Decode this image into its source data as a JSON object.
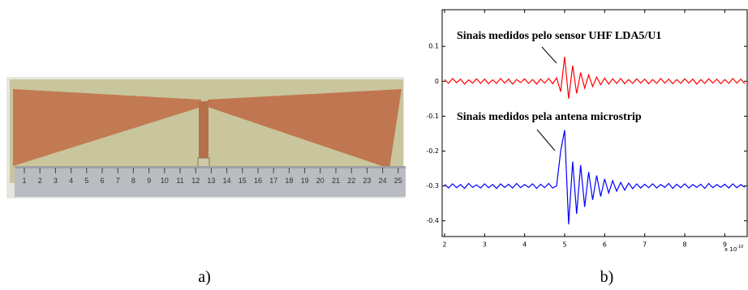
{
  "figure_a": {
    "label": "a)",
    "ruler_labels": [
      1,
      2,
      3,
      4,
      5,
      6,
      7,
      8,
      9,
      10,
      11,
      12,
      13,
      14,
      15,
      16,
      17,
      18,
      19,
      20,
      21,
      22,
      23,
      24,
      25
    ]
  },
  "figure_b_label": "b)",
  "chart_data": {
    "type": "line",
    "annotations": [
      "Sinais medidos pelo sensor UHF LDA5/U1",
      "Sinais medidos pela antena microstrip"
    ],
    "x_multiplier": {
      "base": "x 10",
      "exponent": "-10"
    },
    "x": [
      2,
      2.1,
      2.2,
      2.3,
      2.4,
      2.5,
      2.6,
      2.7,
      2.8,
      2.9,
      3,
      3.1,
      3.2,
      3.3,
      3.4,
      3.5,
      3.6,
      3.7,
      3.8,
      3.9,
      4,
      4.1,
      4.2,
      4.3,
      4.4,
      4.5,
      4.6,
      4.7,
      4.8,
      4.9,
      5,
      5.1,
      5.2,
      5.3,
      5.4,
      5.5,
      5.6,
      5.7,
      5.8,
      5.9,
      6,
      6.1,
      6.2,
      6.3,
      6.4,
      6.5,
      6.6,
      6.7,
      6.8,
      6.9,
      7,
      7.1,
      7.2,
      7.3,
      7.4,
      7.5,
      7.6,
      7.7,
      7.8,
      7.9,
      8,
      8.1,
      8.2,
      8.3,
      8.4,
      8.5,
      8.6,
      8.7,
      8.8,
      8.9,
      9,
      9.1,
      9.2,
      9.3,
      9.4,
      9.5
    ],
    "series": [
      {
        "color": "#ff0000",
        "values": [
          0.005,
          -0.006,
          0.008,
          -0.004,
          0.006,
          -0.008,
          0.004,
          -0.005,
          0.007,
          -0.006,
          0.006,
          -0.007,
          0.004,
          -0.006,
          0.008,
          -0.005,
          0.006,
          -0.008,
          0.005,
          -0.004,
          0.007,
          -0.006,
          0.005,
          -0.008,
          0.006,
          -0.005,
          0.008,
          -0.007,
          0.01,
          -0.03,
          0.07,
          -0.05,
          0.045,
          -0.035,
          0.025,
          -0.02,
          0.018,
          -0.015,
          0.012,
          -0.01,
          0.009,
          -0.008,
          0.007,
          -0.006,
          0.008,
          -0.007,
          0.005,
          -0.006,
          0.007,
          -0.005,
          0.006,
          -0.007,
          0.005,
          -0.006,
          0.008,
          -0.005,
          0.006,
          -0.007,
          0.005,
          -0.006,
          0.007,
          -0.005,
          0.006,
          -0.008,
          0.005,
          -0.006,
          0.007,
          -0.005,
          0.006,
          -0.007,
          0.005,
          -0.006,
          0.008,
          -0.005,
          0.006,
          -0.007
        ]
      },
      {
        "color": "#0000ff",
        "values": [
          -0.295,
          -0.306,
          -0.294,
          -0.305,
          -0.296,
          -0.307,
          -0.293,
          -0.304,
          -0.297,
          -0.306,
          -0.294,
          -0.305,
          -0.296,
          -0.307,
          -0.294,
          -0.304,
          -0.295,
          -0.306,
          -0.293,
          -0.305,
          -0.296,
          -0.304,
          -0.294,
          -0.307,
          -0.295,
          -0.305,
          -0.293,
          -0.306,
          -0.3,
          -0.2,
          -0.14,
          -0.41,
          -0.23,
          -0.38,
          -0.24,
          -0.36,
          -0.26,
          -0.34,
          -0.27,
          -0.33,
          -0.28,
          -0.32,
          -0.285,
          -0.315,
          -0.29,
          -0.312,
          -0.292,
          -0.308,
          -0.294,
          -0.306,
          -0.295,
          -0.305,
          -0.294,
          -0.306,
          -0.296,
          -0.304,
          -0.293,
          -0.307,
          -0.295,
          -0.305,
          -0.294,
          -0.306,
          -0.296,
          -0.304,
          -0.295,
          -0.307,
          -0.293,
          -0.305,
          -0.296,
          -0.304,
          -0.295,
          -0.306,
          -0.294,
          -0.305,
          -0.296,
          -0.304
        ]
      }
    ],
    "xlim": [
      1.94,
      9.56
    ],
    "xticks": [
      2,
      3,
      4,
      5,
      6,
      7,
      8,
      9
    ],
    "ylim": [
      -0.445,
      0.205
    ],
    "yticks": [
      0.1,
      0,
      -0.1,
      -0.2,
      -0.3,
      -0.4
    ]
  }
}
